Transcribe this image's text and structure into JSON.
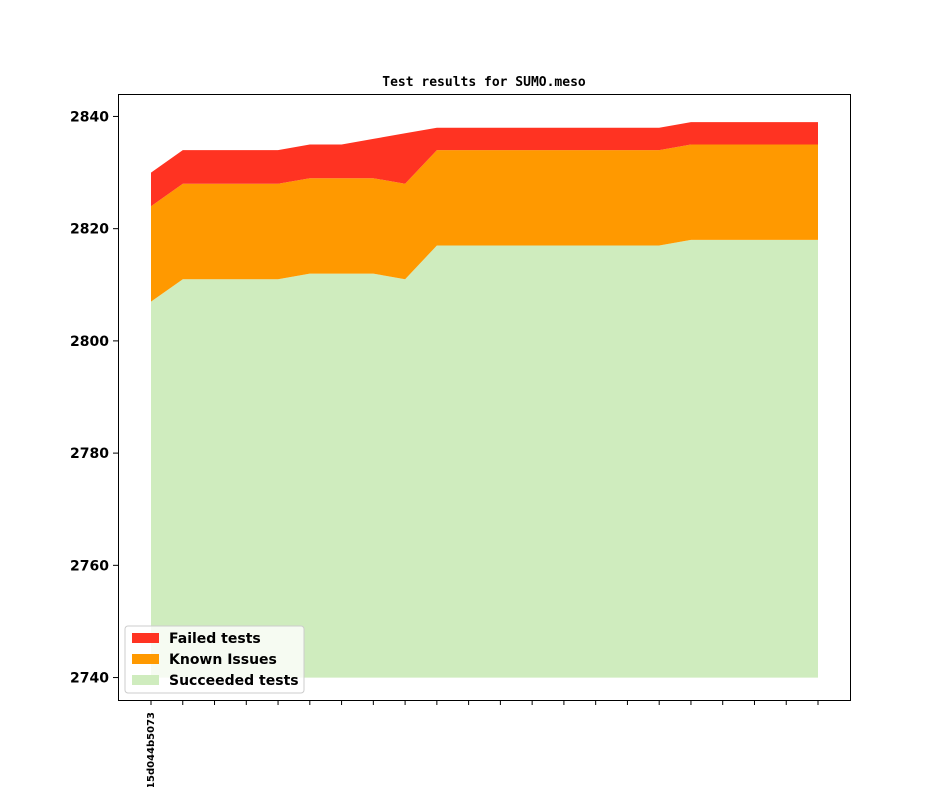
{
  "chart_data": {
    "type": "area",
    "stacked": true,
    "title": "Test results for SUMO.meso",
    "xlabel": "",
    "ylabel": "",
    "ylim": [
      2736,
      2844
    ],
    "yticks": [
      2740,
      2760,
      2780,
      2800,
      2820,
      2840
    ],
    "x_count": 22,
    "xtick_labels": [
      "15d044b5073"
    ],
    "series": [
      {
        "name": "Succeeded tests",
        "color": "#cfecbe",
        "values": [
          2807,
          2811,
          2811,
          2811,
          2811,
          2812,
          2812,
          2812,
          2811,
          2817,
          2817,
          2817,
          2817,
          2817,
          2817,
          2817,
          2817,
          2818,
          2818,
          2818,
          2818,
          2818
        ]
      },
      {
        "name": "Known Issues",
        "color": "#ff9900",
        "values": [
          2824,
          2828,
          2828,
          2828,
          2828,
          2829,
          2829,
          2829,
          2828,
          2834,
          2834,
          2834,
          2834,
          2834,
          2834,
          2834,
          2834,
          2835,
          2835,
          2835,
          2835,
          2835
        ]
      },
      {
        "name": "Failed tests",
        "color": "#ff3322",
        "values": [
          2830,
          2834,
          2834,
          2834,
          2834,
          2835,
          2835,
          2836,
          2837,
          2838,
          2838,
          2838,
          2838,
          2838,
          2838,
          2838,
          2838,
          2839,
          2839,
          2839,
          2839,
          2839
        ]
      }
    ],
    "area_baseline": 2740,
    "legend": {
      "placement": "lower-left",
      "entries": [
        "Failed tests",
        "Known Issues",
        "Succeeded tests"
      ]
    },
    "grid": false
  }
}
